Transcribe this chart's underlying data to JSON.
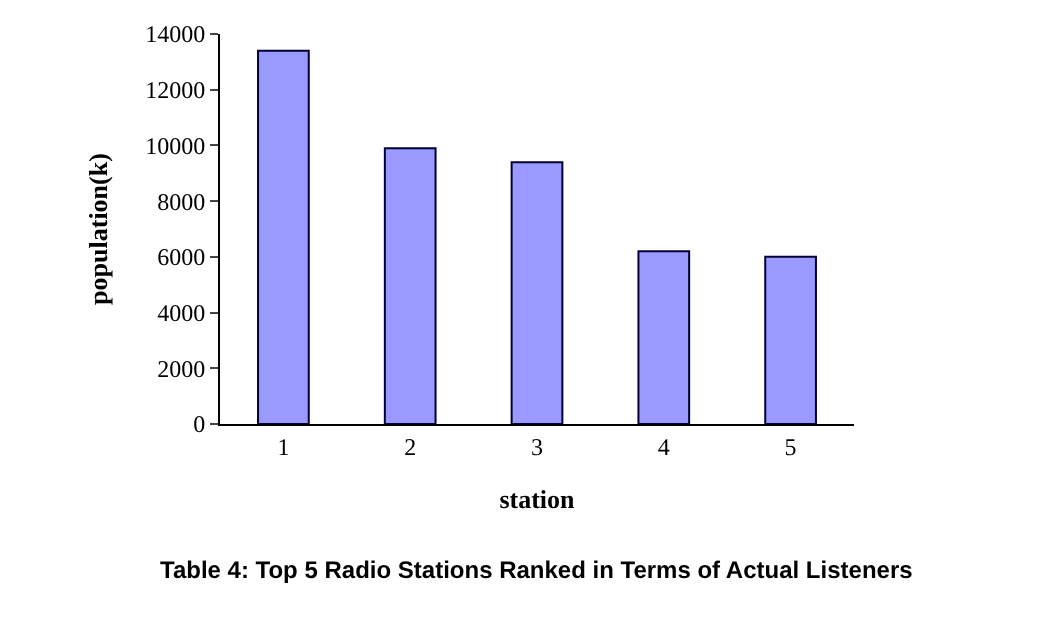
{
  "chart_data": {
    "type": "bar",
    "xlabel": "station",
    "ylabel": "population(k)",
    "categories": [
      "1",
      "2",
      "3",
      "4",
      "5"
    ],
    "values": [
      13400,
      9900,
      9400,
      6200,
      6000
    ],
    "color": "#9999ff",
    "ylim": [
      0,
      14000
    ],
    "yticks": [
      0,
      2000,
      4000,
      6000,
      8000,
      10000,
      12000,
      14000
    ],
    "annotations": [
      "Table 4: Top 5 Radio Stations Ranked in Terms of Actual Listeners"
    ]
  }
}
